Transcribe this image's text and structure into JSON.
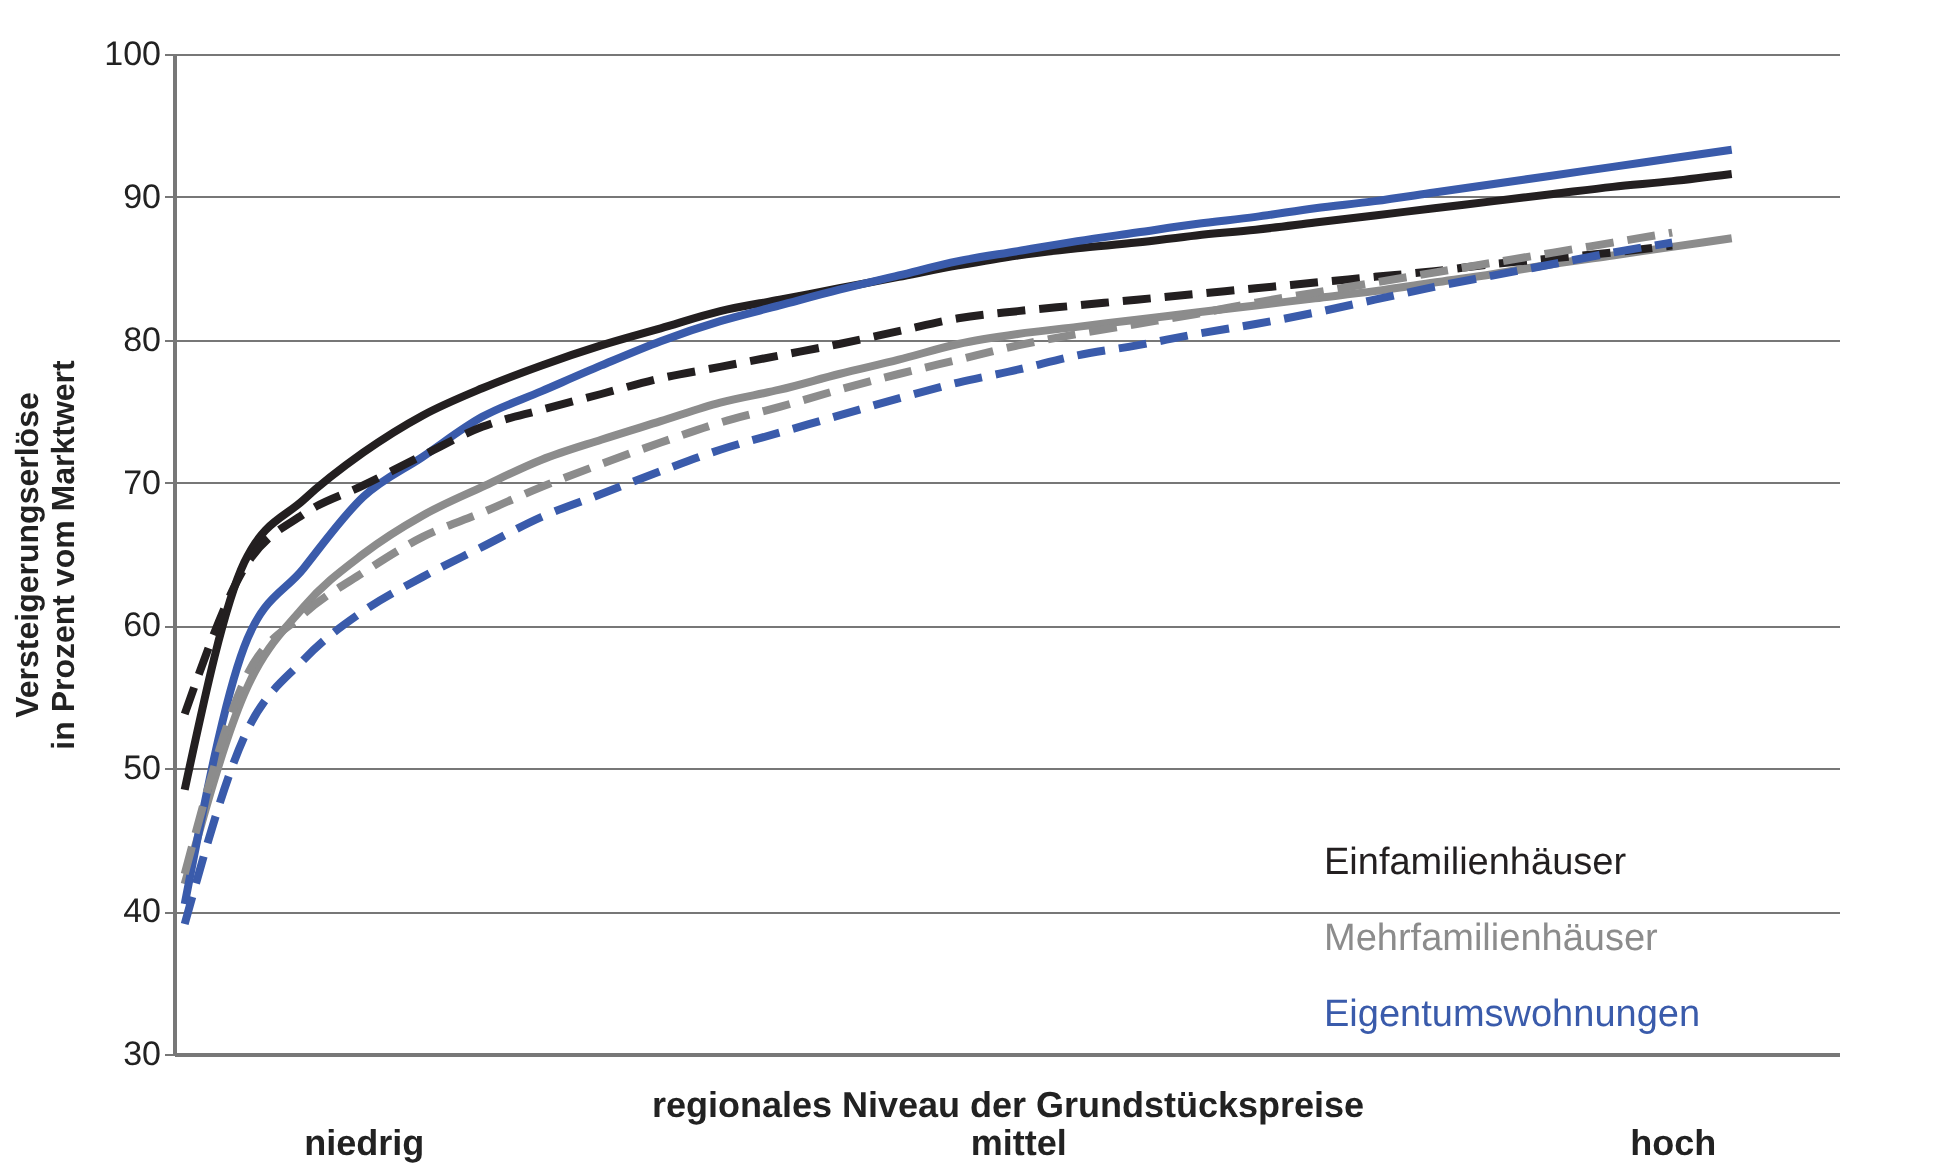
{
  "chart_data": {
    "type": "line",
    "xlabel": "regionales Niveau der Grundstückspreise",
    "ylabel": "Versteigerungserlöse\nin Prozent vom Marktwert",
    "categories": [
      null,
      null,
      null,
      "niedrig",
      null,
      null,
      null,
      null,
      null,
      null,
      null,
      null,
      null,
      null,
      "mittel",
      null,
      null,
      null,
      null,
      null,
      null,
      null,
      null,
      null,
      null,
      "hoch",
      null
    ],
    "ylim": [
      30,
      100
    ],
    "yticks": [
      30,
      40,
      50,
      60,
      70,
      80,
      90,
      100
    ],
    "grid": "y",
    "legend": "bottom right",
    "series": [
      {
        "name": "Einfamilienhäuser",
        "color": "#231f20",
        "line_style": "solid",
        "values": [
          48.5,
          64.4,
          68.8,
          72.1,
          74.7,
          76.6,
          78.2,
          79.6,
          80.8,
          82.0,
          82.8,
          83.6,
          84.4,
          85.2,
          85.9,
          86.4,
          86.8,
          87.3,
          87.7,
          88.2,
          88.7,
          89.2,
          89.7,
          90.2,
          90.7,
          91.1,
          91.6
        ]
      },
      {
        "name": "Mehrfamilienhäuser",
        "color": "#8c8c8c",
        "line_style": "solid",
        "values": [
          41.9,
          55.2,
          61.3,
          65.0,
          67.7,
          69.7,
          71.6,
          73.0,
          74.3,
          75.6,
          76.5,
          77.6,
          78.6,
          79.7,
          80.4,
          80.9,
          81.4,
          81.9,
          82.4,
          82.9,
          83.4,
          84.0,
          84.6,
          85.3,
          85.9,
          86.5,
          87.1
        ]
      },
      {
        "name": "Eigentumswohnungen",
        "color": "#3a5bab",
        "line_style": "solid",
        "values": [
          40.5,
          58.5,
          64.0,
          69.0,
          71.8,
          74.6,
          76.4,
          78.2,
          79.9,
          81.3,
          82.4,
          83.5,
          84.5,
          85.5,
          86.2,
          86.9,
          87.5,
          88.1,
          88.6,
          89.2,
          89.7,
          90.3,
          90.9,
          91.5,
          92.1,
          92.7,
          93.3
        ]
      },
      {
        "color": "#231f20",
        "line_style": "dashed",
        "values": [
          53.8,
          64.0,
          67.8,
          69.8,
          71.9,
          73.9,
          75.1,
          76.2,
          77.3,
          78.1,
          78.9,
          79.7,
          80.6,
          81.5,
          82.0,
          82.4,
          82.8,
          83.2,
          83.6,
          84.0,
          84.4,
          84.8,
          85.3,
          85.7,
          86.1,
          86.6,
          null
        ]
      },
      {
        "color": "#8c8c8c",
        "line_style": "dashed",
        "values": [
          42.6,
          56.1,
          60.8,
          63.7,
          66.2,
          67.9,
          69.7,
          71.3,
          72.8,
          74.2,
          75.3,
          76.5,
          77.6,
          78.6,
          79.6,
          80.4,
          81.1,
          81.8,
          82.6,
          83.3,
          84.0,
          84.7,
          85.4,
          86.1,
          86.8,
          87.5,
          null
        ]
      },
      {
        "color": "#3a5bab",
        "line_style": "dashed",
        "values": [
          39.1,
          52.2,
          57.6,
          61.0,
          63.4,
          65.5,
          67.6,
          69.2,
          70.8,
          72.3,
          73.5,
          74.7,
          75.9,
          77.0,
          77.9,
          78.9,
          79.6,
          80.4,
          81.1,
          81.9,
          82.8,
          83.7,
          84.5,
          85.3,
          86.1,
          86.8,
          null
        ]
      }
    ]
  }
}
